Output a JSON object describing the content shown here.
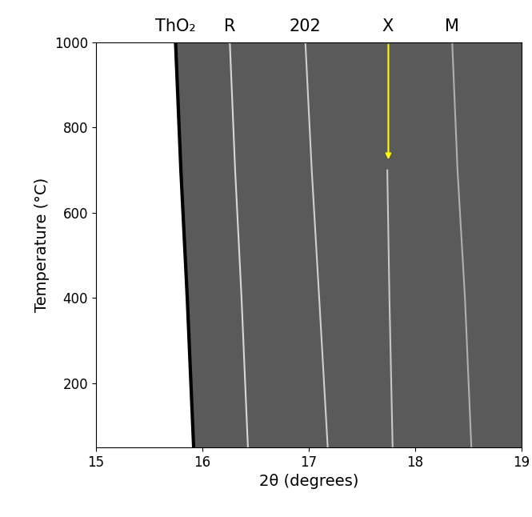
{
  "chart_data": {
    "type": "line",
    "x_label": "2θ (degrees)",
    "y_label": "Temperature (°C)",
    "xlim": [
      15,
      19
    ],
    "xticks": [
      15,
      16,
      17,
      18,
      19
    ],
    "ylim": [
      50,
      1000
    ],
    "yticks": [
      200,
      400,
      600,
      800,
      1000
    ],
    "grid": false,
    "series": [
      {
        "name": "ThO₂",
        "color": "#000000",
        "x": [
          15.92,
          15.86,
          15.8,
          15.75
        ],
        "y": [
          50,
          400,
          700,
          1000
        ]
      },
      {
        "name": "R",
        "color": "#d8d8d8",
        "x": [
          16.43,
          16.37,
          16.31,
          16.26
        ],
        "y": [
          50,
          400,
          700,
          1000
        ]
      },
      {
        "name": "202",
        "color": "#d0d0d0",
        "x": [
          17.18,
          17.1,
          17.03,
          16.97
        ],
        "y": [
          50,
          400,
          700,
          1000
        ]
      },
      {
        "name": "X",
        "color": "#c8c8c8",
        "x": [
          17.79,
          17.76,
          17.74
        ],
        "y": [
          50,
          400,
          700
        ]
      },
      {
        "name": "M",
        "color": "#b0b0b0",
        "x": [
          18.53,
          18.47,
          18.4,
          18.35
        ],
        "y": [
          50,
          400,
          700,
          1000
        ]
      }
    ],
    "arrow": {
      "x": 17.75,
      "from": 1000,
      "to": 720,
      "color": "#ffff00"
    }
  }
}
